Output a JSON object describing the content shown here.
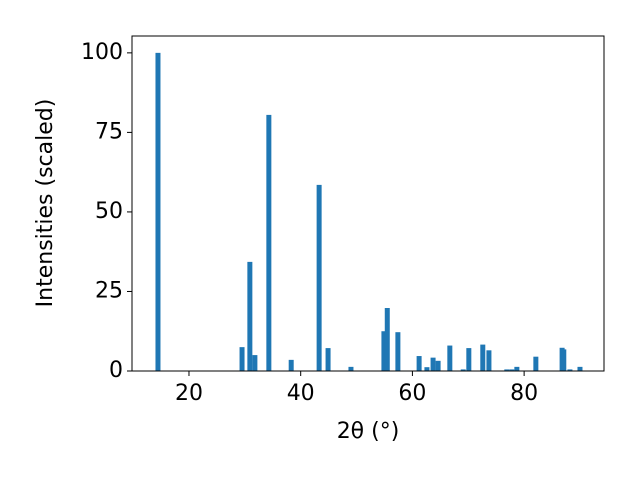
{
  "chart_data": {
    "type": "bar",
    "xlabel": "2θ (°)",
    "ylabel": "Intensities (scaled)",
    "x": [
      14.45,
      29.5,
      30.9,
      31.8,
      34.3,
      38.3,
      43.3,
      44.9,
      49.0,
      54.9,
      55.5,
      57.4,
      61.2,
      62.6,
      63.7,
      64.6,
      66.7,
      69.1,
      70.1,
      72.6,
      73.7,
      76.9,
      77.8,
      78.7,
      82.1,
      86.8,
      87.1,
      88.2,
      90.0
    ],
    "values": [
      100,
      7.5,
      34.3,
      5,
      80.5,
      3.5,
      58.5,
      7.2,
      1.3,
      12.5,
      19.8,
      12.2,
      4.7,
      1.2,
      4.2,
      3.2,
      8,
      0.5,
      7.2,
      8.3,
      6.5,
      0.5,
      0.5,
      1.3,
      4.5,
      7.3,
      6.8,
      0.5,
      1.3
    ],
    "color": "#1f77b4",
    "xlim": [
      9.8,
      94.3
    ],
    "xticks": [
      20,
      40,
      60,
      80
    ],
    "ylim": [
      0,
      105.3
    ],
    "yticks": [
      0,
      25,
      50,
      75,
      100
    ],
    "grid": false
  }
}
